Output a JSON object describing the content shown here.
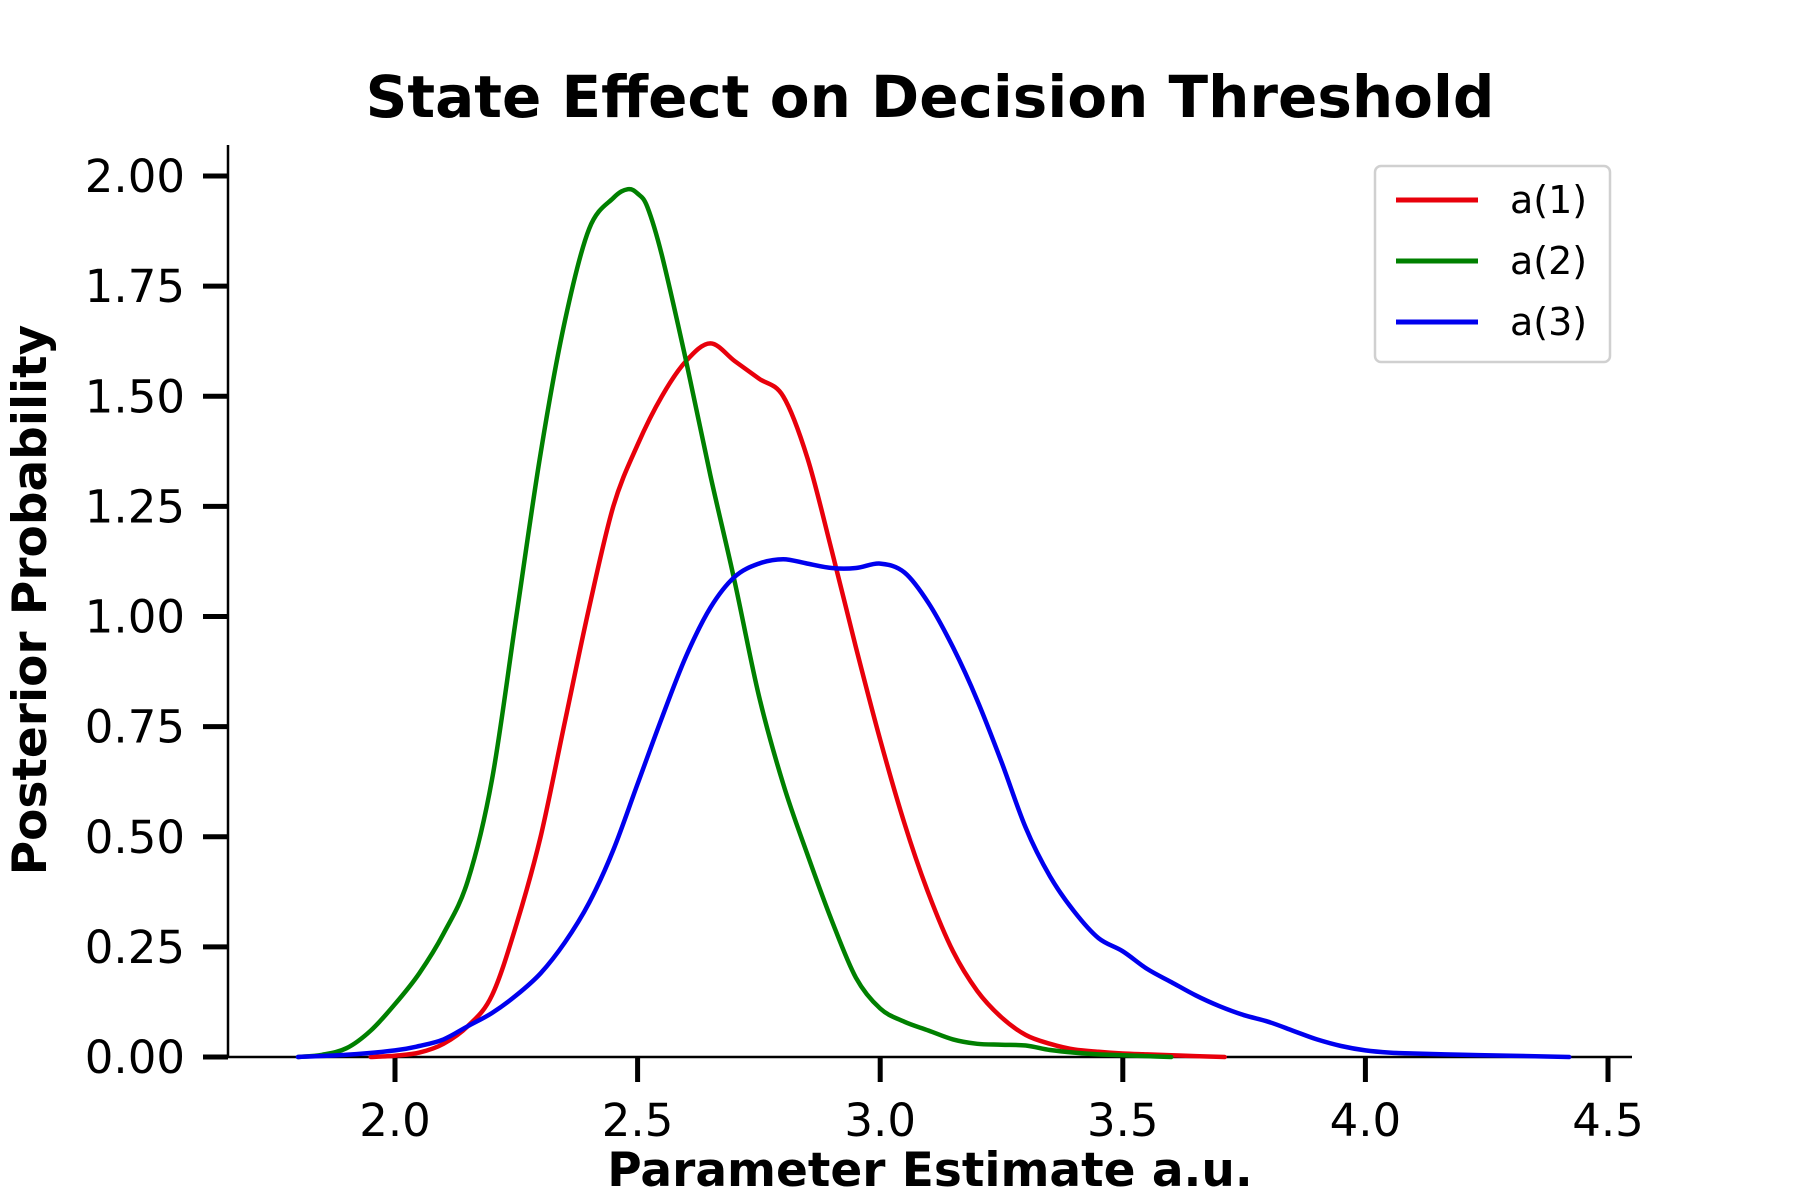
{
  "chart_data": {
    "type": "line",
    "title": "State Effect on Decision Threshold",
    "xlabel": "Parameter Estimate a.u.",
    "ylabel": "Posterior Probability",
    "xlim": [
      1.65,
      4.55
    ],
    "ylim": [
      0.0,
      2.07
    ],
    "xticks": [
      2.0,
      2.5,
      3.0,
      3.5,
      4.0,
      4.5
    ],
    "xtick_labels": [
      "2.0",
      "2.5",
      "3.0",
      "3.5",
      "4.0",
      "4.5"
    ],
    "yticks": [
      0.0,
      0.25,
      0.5,
      0.75,
      1.0,
      1.25,
      1.5,
      1.75,
      2.0
    ],
    "ytick_labels": [
      "0.00",
      "0.25",
      "0.50",
      "0.75",
      "1.00",
      "1.25",
      "1.50",
      "1.75",
      "2.00"
    ],
    "grid": false,
    "legend_position": "top-right",
    "series": [
      {
        "name": "a(1)",
        "color": "#e8000b",
        "x": [
          1.95,
          2.0,
          2.05,
          2.1,
          2.15,
          2.2,
          2.25,
          2.3,
          2.35,
          2.4,
          2.45,
          2.5,
          2.55,
          2.6,
          2.65,
          2.7,
          2.75,
          2.8,
          2.85,
          2.9,
          2.95,
          3.0,
          3.05,
          3.1,
          3.15,
          3.2,
          3.25,
          3.3,
          3.35,
          3.4,
          3.45,
          3.5,
          3.55,
          3.6,
          3.65,
          3.71
        ],
        "y": [
          0.0,
          0.003,
          0.01,
          0.03,
          0.07,
          0.14,
          0.3,
          0.5,
          0.76,
          1.02,
          1.25,
          1.39,
          1.5,
          1.58,
          1.62,
          1.58,
          1.54,
          1.5,
          1.36,
          1.15,
          0.93,
          0.72,
          0.53,
          0.37,
          0.24,
          0.15,
          0.09,
          0.05,
          0.03,
          0.017,
          0.012,
          0.008,
          0.006,
          0.004,
          0.002,
          0.0
        ]
      },
      {
        "name": "a(2)",
        "color": "#008000",
        "x": [
          1.8,
          1.85,
          1.9,
          1.95,
          2.0,
          2.05,
          2.1,
          2.15,
          2.2,
          2.25,
          2.3,
          2.35,
          2.4,
          2.45,
          2.48,
          2.5,
          2.52,
          2.55,
          2.6,
          2.65,
          2.7,
          2.75,
          2.8,
          2.85,
          2.9,
          2.95,
          3.0,
          3.05,
          3.1,
          3.15,
          3.2,
          3.25,
          3.3,
          3.35,
          3.4,
          3.45,
          3.5,
          3.55,
          3.6
        ],
        "y": [
          0.0,
          0.005,
          0.02,
          0.06,
          0.12,
          0.19,
          0.28,
          0.4,
          0.63,
          1.0,
          1.37,
          1.67,
          1.88,
          1.95,
          1.97,
          1.96,
          1.93,
          1.82,
          1.58,
          1.32,
          1.08,
          0.82,
          0.62,
          0.46,
          0.31,
          0.18,
          0.11,
          0.08,
          0.06,
          0.04,
          0.03,
          0.028,
          0.026,
          0.016,
          0.01,
          0.006,
          0.004,
          0.002,
          0.0
        ]
      },
      {
        "name": "a(3)",
        "color": "#0000ee",
        "x": [
          1.8,
          1.9,
          2.0,
          2.05,
          2.1,
          2.15,
          2.2,
          2.25,
          2.3,
          2.35,
          2.4,
          2.45,
          2.5,
          2.55,
          2.6,
          2.65,
          2.7,
          2.75,
          2.8,
          2.85,
          2.9,
          2.95,
          3.0,
          3.05,
          3.1,
          3.15,
          3.2,
          3.25,
          3.3,
          3.35,
          3.4,
          3.45,
          3.5,
          3.55,
          3.6,
          3.65,
          3.7,
          3.75,
          3.8,
          3.85,
          3.9,
          3.95,
          4.0,
          4.05,
          4.1,
          4.2,
          4.3,
          4.42
        ],
        "y": [
          0.0,
          0.005,
          0.015,
          0.025,
          0.04,
          0.07,
          0.1,
          0.14,
          0.19,
          0.26,
          0.35,
          0.47,
          0.62,
          0.77,
          0.91,
          1.02,
          1.09,
          1.12,
          1.13,
          1.12,
          1.11,
          1.11,
          1.12,
          1.1,
          1.03,
          0.93,
          0.81,
          0.67,
          0.52,
          0.41,
          0.33,
          0.27,
          0.24,
          0.2,
          0.17,
          0.14,
          0.115,
          0.095,
          0.08,
          0.06,
          0.04,
          0.025,
          0.015,
          0.01,
          0.008,
          0.005,
          0.003,
          0.0
        ]
      }
    ]
  }
}
